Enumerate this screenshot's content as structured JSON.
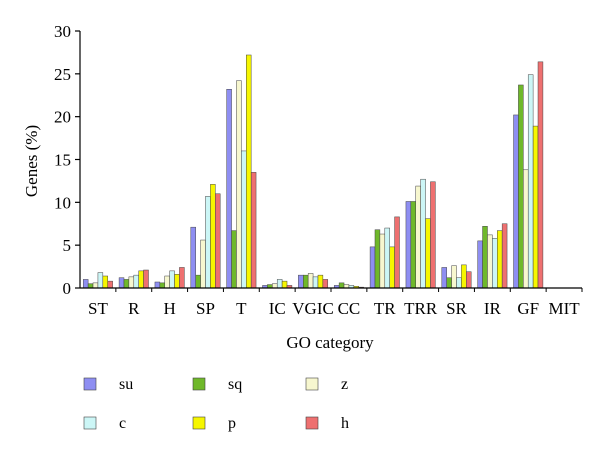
{
  "chart_data": {
    "type": "bar",
    "xlabel": "GO category",
    "ylabel": "Genes (%)",
    "ylim": [
      0,
      30
    ],
    "yticks": [
      0,
      5,
      10,
      15,
      20,
      25,
      30
    ],
    "grid": false,
    "legend_position": "bottom",
    "categories": [
      "ST",
      "R",
      "H",
      "SP",
      "T",
      "IC",
      "VGIC",
      "CC",
      "TR",
      "TRR",
      "SR",
      "IR",
      "GF",
      "MIT"
    ],
    "series": [
      {
        "name": "su",
        "color": "#8e8ef2",
        "values": [
          1.0,
          1.2,
          0.7,
          7.1,
          23.2,
          0.3,
          1.5,
          0.3,
          4.8,
          10.1,
          2.4,
          5.5,
          20.2,
          0
        ]
      },
      {
        "name": "sq",
        "color": "#6fb82a",
        "values": [
          0.5,
          1.0,
          0.6,
          1.5,
          6.7,
          0.4,
          1.5,
          0.6,
          6.8,
          10.1,
          1.2,
          7.2,
          23.7,
          0
        ]
      },
      {
        "name": "z",
        "color": "#f7f7cf",
        "values": [
          0.6,
          1.3,
          1.4,
          5.6,
          24.2,
          0.5,
          1.7,
          0.4,
          6.3,
          11.9,
          2.6,
          6.2,
          13.8,
          0
        ]
      },
      {
        "name": "c",
        "color": "#ccf6f6",
        "values": [
          1.8,
          1.5,
          2.0,
          10.7,
          16.0,
          1.0,
          1.3,
          0.3,
          7.0,
          12.7,
          1.2,
          5.8,
          24.9,
          0
        ]
      },
      {
        "name": "p",
        "color": "#f6f600",
        "values": [
          1.4,
          2.0,
          1.6,
          12.1,
          27.2,
          0.8,
          1.5,
          0.2,
          4.8,
          8.1,
          2.7,
          6.7,
          18.9,
          0
        ]
      },
      {
        "name": "h",
        "color": "#ee7070",
        "values": [
          0.8,
          2.1,
          2.4,
          11.0,
          13.5,
          0.3,
          1.0,
          0.1,
          8.3,
          12.4,
          1.9,
          7.5,
          26.4,
          0
        ]
      }
    ]
  }
}
